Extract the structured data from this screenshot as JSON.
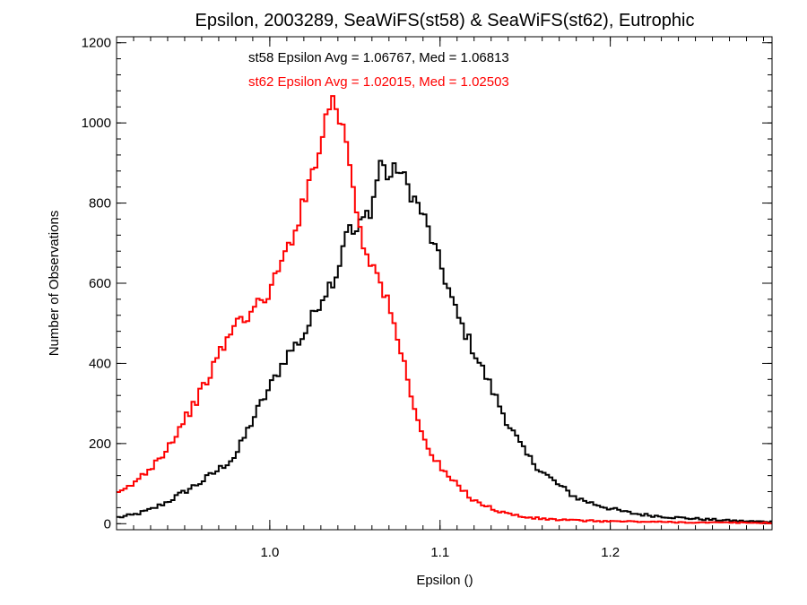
{
  "chart_data": {
    "type": "histogram",
    "title": "Epsilon, 2003289, SeaWiFS(st58) & SeaWiFS(st62), Eutrophic",
    "xlabel": "Epsilon ()",
    "ylabel": "Number of Observations",
    "xlim": [
      0.91,
      1.295
    ],
    "ylim": [
      -15,
      1215
    ],
    "xticks": [
      1.0,
      1.1,
      1.2
    ],
    "xtick_labels": [
      "1.0",
      "1.1",
      "1.2"
    ],
    "yticks": [
      0,
      200,
      400,
      600,
      800,
      1000,
      1200
    ],
    "ytick_labels": [
      "0",
      "200",
      "400",
      "600",
      "800",
      "1000",
      "1200"
    ],
    "grid": false,
    "annotations": [
      {
        "text": "st58 Epsilon Avg = 1.06767, Med = 1.06813",
        "color": "#000000"
      },
      {
        "text": "st62 Epsilon Avg = 1.02015, Med = 1.02503",
        "color": "#ff0000"
      }
    ],
    "series": [
      {
        "color": "#000000",
        "points": [
          [
            0.91,
            15
          ],
          [
            0.92,
            22
          ],
          [
            0.93,
            35
          ],
          [
            0.94,
            55
          ],
          [
            0.95,
            80
          ],
          [
            0.96,
            105
          ],
          [
            0.97,
            135
          ],
          [
            0.98,
            170
          ],
          [
            0.99,
            260
          ],
          [
            1.0,
            340
          ],
          [
            1.01,
            420
          ],
          [
            1.02,
            470
          ],
          [
            1.03,
            560
          ],
          [
            1.04,
            630
          ],
          [
            1.045,
            740
          ],
          [
            1.05,
            720
          ],
          [
            1.055,
            760
          ],
          [
            1.06,
            790
          ],
          [
            1.065,
            905
          ],
          [
            1.07,
            860
          ],
          [
            1.075,
            890
          ],
          [
            1.08,
            850
          ],
          [
            1.09,
            770
          ],
          [
            1.1,
            650
          ],
          [
            1.11,
            520
          ],
          [
            1.12,
            430
          ],
          [
            1.13,
            340
          ],
          [
            1.14,
            250
          ],
          [
            1.15,
            175
          ],
          [
            1.16,
            130
          ],
          [
            1.17,
            95
          ],
          [
            1.18,
            65
          ],
          [
            1.19,
            50
          ],
          [
            1.2,
            38
          ],
          [
            1.21,
            28
          ],
          [
            1.22,
            22
          ],
          [
            1.24,
            15
          ],
          [
            1.26,
            10
          ],
          [
            1.28,
            6
          ],
          [
            1.295,
            5
          ]
        ]
      },
      {
        "color": "#ff0000",
        "points": [
          [
            0.91,
            70
          ],
          [
            0.92,
            100
          ],
          [
            0.93,
            140
          ],
          [
            0.94,
            190
          ],
          [
            0.95,
            260
          ],
          [
            0.96,
            330
          ],
          [
            0.97,
            420
          ],
          [
            0.98,
            500
          ],
          [
            0.99,
            530
          ],
          [
            1.0,
            580
          ],
          [
            1.01,
            680
          ],
          [
            1.02,
            800
          ],
          [
            1.025,
            880
          ],
          [
            1.03,
            960
          ],
          [
            1.035,
            1040
          ],
          [
            1.038,
            1075
          ],
          [
            1.04,
            1020
          ],
          [
            1.045,
            960
          ],
          [
            1.05,
            810
          ],
          [
            1.055,
            700
          ],
          [
            1.06,
            650
          ],
          [
            1.065,
            600
          ],
          [
            1.07,
            540
          ],
          [
            1.08,
            380
          ],
          [
            1.09,
            210
          ],
          [
            1.1,
            140
          ],
          [
            1.11,
            95
          ],
          [
            1.12,
            60
          ],
          [
            1.13,
            38
          ],
          [
            1.14,
            25
          ],
          [
            1.15,
            16
          ],
          [
            1.16,
            12
          ],
          [
            1.18,
            8
          ],
          [
            1.2,
            6
          ],
          [
            1.22,
            5
          ],
          [
            1.25,
            3
          ],
          [
            1.295,
            2
          ]
        ]
      }
    ]
  }
}
